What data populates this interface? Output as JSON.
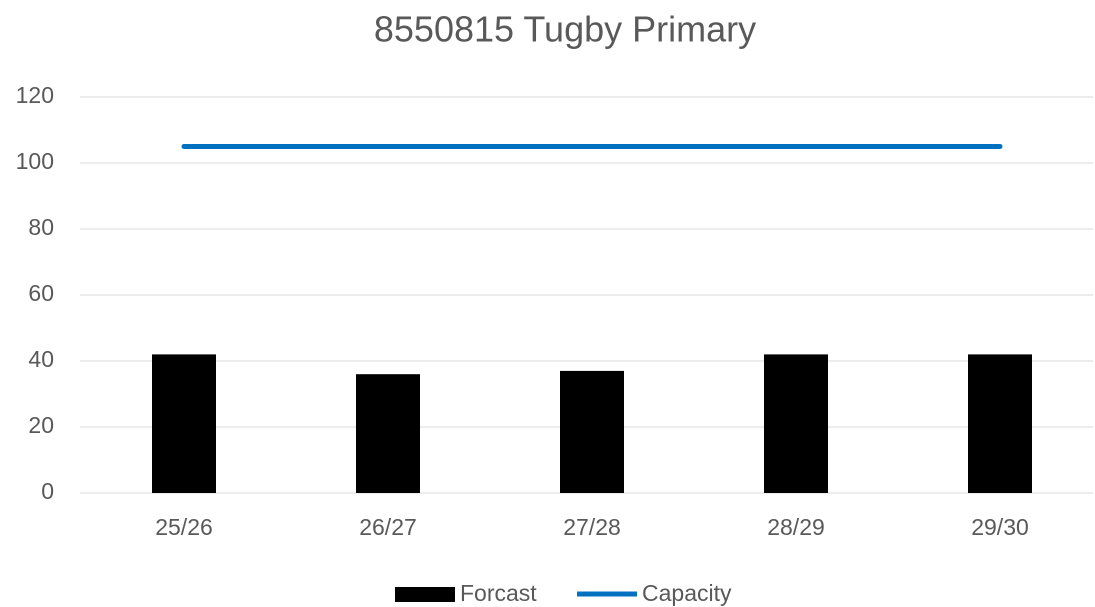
{
  "chart_data": {
    "type": "bar",
    "title": "8550815 Tugby Primary",
    "categories": [
      "25/26",
      "26/27",
      "27/28",
      "28/29",
      "29/30"
    ],
    "series": [
      {
        "name": "Forcast",
        "type": "bar",
        "color": "#000000",
        "values": [
          42,
          36,
          37,
          42,
          42
        ]
      },
      {
        "name": "Capacity",
        "type": "line",
        "color": "#0070c0",
        "values": [
          105,
          105,
          105,
          105,
          105
        ]
      }
    ],
    "ylim": [
      0,
      120
    ],
    "yticks": [
      0,
      20,
      40,
      60,
      80,
      100,
      120
    ],
    "grid": true,
    "legend": "bottom"
  }
}
